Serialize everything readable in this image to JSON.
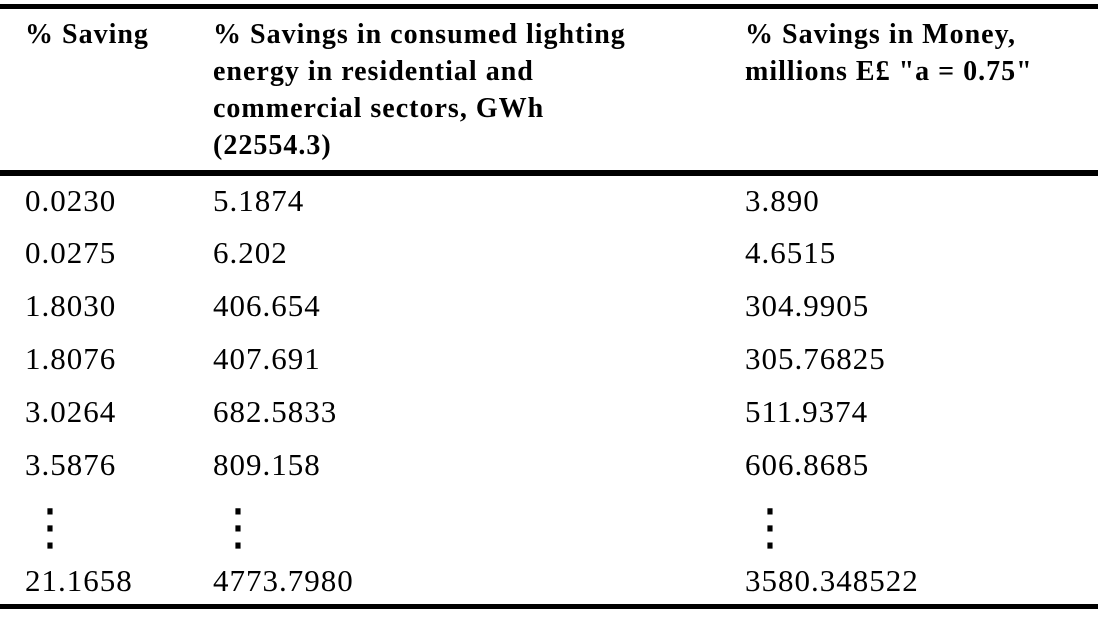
{
  "table": {
    "headers": [
      {
        "id": "saving-percent",
        "lines": [
          "% Saving"
        ]
      },
      {
        "id": "energy-savings",
        "lines": [
          "% Savings in consumed lighting",
          "energy in residential and",
          "commercial sectors, GWh",
          "(22554.3)"
        ]
      },
      {
        "id": "money-savings",
        "lines": [
          "% Savings in Money,",
          "millions E£ \"a = 0.75\""
        ]
      }
    ],
    "rows": [
      {
        "type": "value-row",
        "cells": [
          "0.0230",
          "5.1874",
          "3.890"
        ]
      },
      {
        "type": "value-row",
        "cells": [
          "0.0275",
          "6.202",
          "4.6515"
        ]
      },
      {
        "type": "value-row",
        "cells": [
          "1.8030",
          "406.654",
          "304.9905"
        ]
      },
      {
        "type": "value-row",
        "cells": [
          "1.8076",
          "407.691",
          "305.76825"
        ]
      },
      {
        "type": "value-row",
        "cells": [
          "3.0264",
          "682.5833",
          "511.9374"
        ]
      },
      {
        "type": "value-row",
        "cells": [
          "3.5876",
          "809.158",
          "606.8685"
        ]
      },
      {
        "type": "ellipsis-row",
        "cells": [
          "⋮",
          "⋮",
          "⋮"
        ]
      },
      {
        "type": "last-row",
        "cells": [
          "21.1658",
          "4773.7980",
          "3580.348522"
        ]
      }
    ],
    "colors": {
      "text": "#000000",
      "background": "#ffffff",
      "rule": "#000000"
    }
  }
}
